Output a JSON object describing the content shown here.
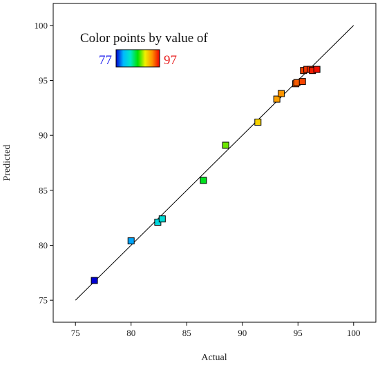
{
  "chart_data": {
    "type": "scatter",
    "title": "",
    "xlabel": "Actual",
    "ylabel": "Predicted",
    "xlim": [
      73,
      102
    ],
    "ylim": [
      73,
      102
    ],
    "xticks": [
      75,
      80,
      85,
      90,
      95,
      100
    ],
    "yticks": [
      75,
      80,
      85,
      90,
      95,
      100
    ],
    "grid": false,
    "reference_line": {
      "from": [
        75,
        75
      ],
      "to": [
        100,
        100
      ]
    },
    "legend": {
      "title": "Color points by value of",
      "min_label": "77",
      "max_label": "97",
      "min": 77,
      "max": 97,
      "placement": "top-left"
    },
    "points": [
      {
        "x": 76.7,
        "y": 76.8
      },
      {
        "x": 80.0,
        "y": 80.4
      },
      {
        "x": 82.4,
        "y": 82.1
      },
      {
        "x": 82.8,
        "y": 82.4
      },
      {
        "x": 86.5,
        "y": 85.9
      },
      {
        "x": 88.5,
        "y": 89.1
      },
      {
        "x": 91.4,
        "y": 91.2
      },
      {
        "x": 93.1,
        "y": 93.3
      },
      {
        "x": 93.5,
        "y": 93.8
      },
      {
        "x": 94.8,
        "y": 94.7
      },
      {
        "x": 94.9,
        "y": 94.8
      },
      {
        "x": 95.4,
        "y": 94.9
      },
      {
        "x": 95.5,
        "y": 95.9
      },
      {
        "x": 95.8,
        "y": 96.0
      },
      {
        "x": 96.1,
        "y": 96.0
      },
      {
        "x": 96.3,
        "y": 95.9
      },
      {
        "x": 96.7,
        "y": 96.0
      }
    ]
  },
  "colors": {
    "gradient": [
      "#0000d0",
      "#00b8ff",
      "#00e8c8",
      "#00e000",
      "#f0f000",
      "#ff9000",
      "#ee0000"
    ],
    "axis": "#000000",
    "reference_line": "#000000",
    "marker_border": "#000000"
  }
}
